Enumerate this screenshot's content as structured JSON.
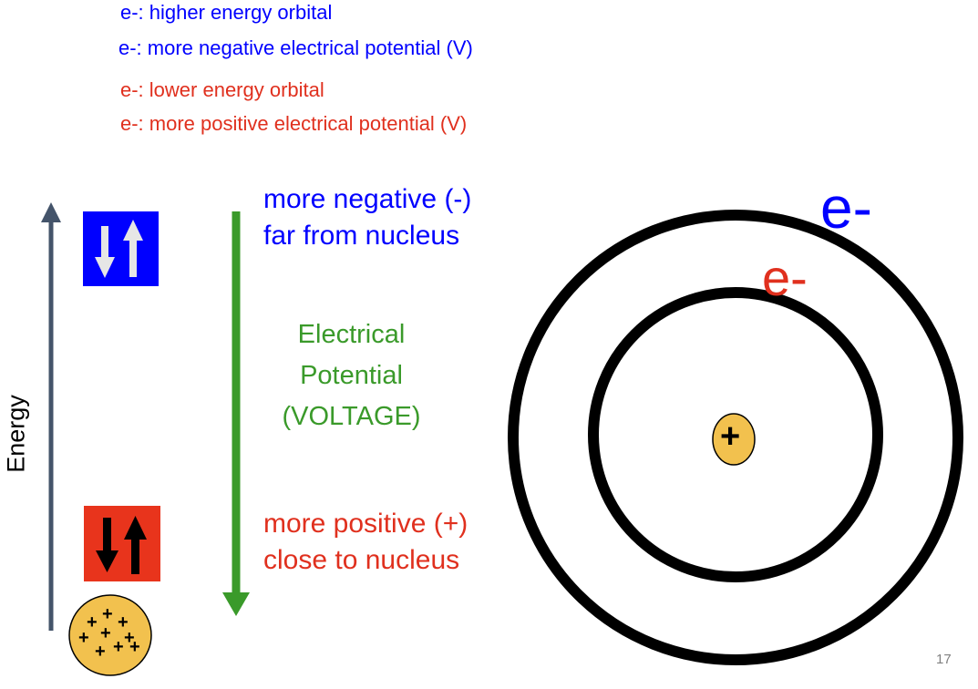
{
  "legend": {
    "line1": "e-:  higher energy orbital",
    "line2": "e-:  more negative electrical potential (V)",
    "line3": "e-:  lower energy orbital",
    "line4": "e-:  more positive electrical potential (V)"
  },
  "axis": {
    "energy_label": "Energy"
  },
  "top_label": {
    "line1": "more negative (-)",
    "line2": "far from nucleus"
  },
  "middle_label": {
    "line1": "Electrical",
    "line2": "Potential",
    "line3": "(VOLTAGE)"
  },
  "bottom_label": {
    "line1": "more positive (+)",
    "line2": "close to nucleus"
  },
  "atom": {
    "outer_electron": "e-",
    "inner_electron": "e-",
    "nucleus_sign": "+"
  },
  "nucleus_small": {
    "signs": [
      "+",
      "+",
      "+",
      "+",
      "+",
      "+",
      "+",
      "+",
      "+"
    ]
  },
  "colors": {
    "blue": "#0000ff",
    "red": "#e0301e",
    "green": "#3a9a2a",
    "axis_gray": "#44546a",
    "nucleus_fill": "#f2c14e"
  },
  "page": {
    "number": "17"
  }
}
